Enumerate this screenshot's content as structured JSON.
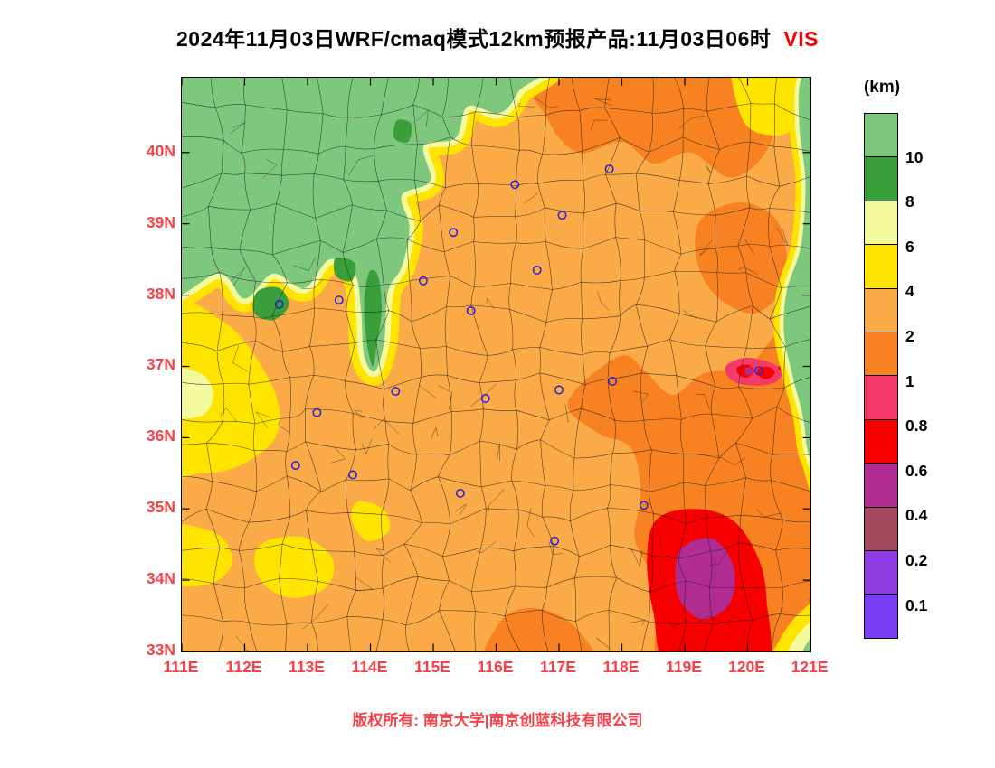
{
  "title": {
    "main": "2024年11月03日WRF/cmaq模式12km预报产品:11月03日06时",
    "var": "VIS",
    "var_color": "#f80000"
  },
  "footer": {
    "text": "版权所有: 南京大学|南京创蓝科技有限公司",
    "color": "#fa3f46"
  },
  "legend": {
    "unit": "(km)",
    "labels": [
      "10",
      "8",
      "6",
      "4",
      "2",
      "1",
      "0.8",
      "0.6",
      "0.4",
      "0.2",
      "0.1"
    ],
    "colors": [
      "#7dc87d",
      "#3a9e3a",
      "#f3fa9e",
      "#ffe400",
      "#fbaa48",
      "#f88221",
      "#f43a69",
      "#f80000",
      "#b02c91",
      "#a44a5f",
      "#8d3de0",
      "#7a3cf0"
    ]
  },
  "axes": {
    "lat_labels": [
      "40N",
      "39N",
      "38N",
      "37N",
      "36N",
      "35N",
      "34N",
      "33N"
    ],
    "lon_labels": [
      "111E",
      "112E",
      "113E",
      "114E",
      "115E",
      "116E",
      "117E",
      "118E",
      "119E",
      "120E",
      "121E"
    ],
    "label_color": "#fa3f46"
  },
  "chart_data": {
    "type": "heatmap",
    "variable": "VIS",
    "unit": "km",
    "lon_range": [
      111,
      121
    ],
    "lat_range": [
      33,
      41.05
    ],
    "levels": [
      0.1,
      0.2,
      0.4,
      0.6,
      0.8,
      1,
      2,
      4,
      6,
      8,
      10
    ],
    "marker_color": "#2323d7",
    "boundary_color": "#1b1b1b",
    "city_markers": [
      [
        116.3,
        39.55
      ],
      [
        117.05,
        39.12
      ],
      [
        117.8,
        39.77
      ],
      [
        115.32,
        38.88
      ],
      [
        114.84,
        38.2
      ],
      [
        116.65,
        38.35
      ],
      [
        115.6,
        37.78
      ],
      [
        112.55,
        37.87
      ],
      [
        113.5,
        37.93
      ],
      [
        114.4,
        36.65
      ],
      [
        113.15,
        36.35
      ],
      [
        112.81,
        35.61
      ],
      [
        113.72,
        35.48
      ],
      [
        115.43,
        35.22
      ],
      [
        115.83,
        36.55
      ],
      [
        117.0,
        36.67
      ],
      [
        117.85,
        36.79
      ],
      [
        120.18,
        36.94
      ],
      [
        116.93,
        34.55
      ],
      [
        118.35,
        35.05
      ]
    ],
    "shapes": {
      "nw_green": [
        [
          110.6,
          41.4
        ],
        [
          110.6,
          38.15
        ],
        [
          111.6,
          38.3
        ],
        [
          112.0,
          37.95
        ],
        [
          112.45,
          38.3
        ],
        [
          112.95,
          38.1
        ],
        [
          113.35,
          38.5
        ],
        [
          113.75,
          38.3
        ],
        [
          113.85,
          37.8
        ],
        [
          113.9,
          37.15
        ],
        [
          114.07,
          36.93
        ],
        [
          114.22,
          37.35
        ],
        [
          114.28,
          38.05
        ],
        [
          114.5,
          38.4
        ],
        [
          114.62,
          38.95
        ],
        [
          114.5,
          39.4
        ],
        [
          114.95,
          39.6
        ],
        [
          114.85,
          40.1
        ],
        [
          115.35,
          40.2
        ],
        [
          115.55,
          40.65
        ],
        [
          116.05,
          40.55
        ],
        [
          116.35,
          40.85
        ],
        [
          116.55,
          41.4
        ]
      ],
      "sea_strip": [
        [
          121.4,
          41.4
        ],
        [
          120.88,
          41.1
        ],
        [
          120.82,
          40.4
        ],
        [
          120.92,
          39.6
        ],
        [
          120.85,
          38.7
        ],
        [
          120.62,
          38.05
        ],
        [
          120.58,
          37.45
        ],
        [
          120.72,
          36.85
        ],
        [
          120.88,
          36.3
        ],
        [
          121.0,
          35.7
        ],
        [
          121.4,
          35.35
        ]
      ],
      "se_corner_y": [
        [
          120.3,
          32.6
        ],
        [
          120.5,
          33.15
        ],
        [
          120.9,
          33.6
        ],
        [
          121.4,
          33.8
        ],
        [
          121.4,
          32.6
        ]
      ],
      "se_corner_p": [
        [
          120.55,
          32.6
        ],
        [
          120.7,
          33.1
        ],
        [
          121.05,
          33.45
        ],
        [
          121.4,
          33.55
        ],
        [
          121.4,
          32.6
        ]
      ],
      "se_corner_g": [
        [
          120.75,
          32.6
        ],
        [
          120.9,
          33.05
        ],
        [
          121.15,
          33.3
        ],
        [
          121.4,
          33.35
        ],
        [
          121.4,
          32.6
        ]
      ]
    },
    "regions": [
      {
        "name": "top-band",
        "level": "1-2",
        "fill": 5,
        "pts": [
          [
            116.55,
            41.4
          ],
          [
            116.8,
            40.5
          ],
          [
            117.3,
            40.0
          ],
          [
            118.0,
            40.15
          ],
          [
            118.5,
            39.85
          ],
          [
            119.1,
            40.0
          ],
          [
            119.7,
            39.65
          ],
          [
            120.2,
            39.9
          ],
          [
            120.5,
            40.5
          ],
          [
            120.55,
            41.4
          ]
        ]
      },
      {
        "name": "bohai-coast",
        "level": "1-2",
        "fill": 5,
        "pts": [
          [
            119.25,
            39.05
          ],
          [
            119.9,
            39.3
          ],
          [
            120.5,
            39.0
          ],
          [
            120.6,
            38.2
          ],
          [
            120.15,
            37.75
          ],
          [
            119.55,
            37.95
          ],
          [
            119.2,
            38.45
          ]
        ]
      },
      {
        "name": "east-region",
        "level": "1-2",
        "fill": 5,
        "pts": [
          [
            118.0,
            37.15
          ],
          [
            117.35,
            36.75
          ],
          [
            117.15,
            36.4
          ],
          [
            117.65,
            36.05
          ],
          [
            118.15,
            35.85
          ],
          [
            118.3,
            35.2
          ],
          [
            118.2,
            34.6
          ],
          [
            118.45,
            34.1
          ],
          [
            118.55,
            33.5
          ],
          [
            118.8,
            32.7
          ],
          [
            121.4,
            32.7
          ],
          [
            121.4,
            37.1
          ],
          [
            120.6,
            37.5
          ],
          [
            120.0,
            37.0
          ],
          [
            119.3,
            36.9
          ],
          [
            118.8,
            36.6
          ],
          [
            118.35,
            36.95
          ]
        ]
      },
      {
        "name": "bottom-center",
        "level": "1-2",
        "fill": 5,
        "pts": [
          [
            115.85,
            32.7
          ],
          [
            116.1,
            33.45
          ],
          [
            116.7,
            33.6
          ],
          [
            117.3,
            33.3
          ],
          [
            117.55,
            32.7
          ]
        ]
      },
      {
        "name": "se-red",
        "level": "0.6-0.8",
        "fill": 7,
        "pts": [
          [
            118.55,
            34.85
          ],
          [
            119.15,
            35.0
          ],
          [
            119.75,
            34.85
          ],
          [
            120.15,
            34.35
          ],
          [
            120.3,
            33.75
          ],
          [
            120.25,
            32.7
          ],
          [
            118.8,
            32.7
          ],
          [
            118.5,
            33.55
          ],
          [
            118.4,
            34.3
          ]
        ]
      },
      {
        "name": "se-magenta",
        "level": "0.4-0.6",
        "fill": 8,
        "pts": [
          [
            118.95,
            34.45
          ],
          [
            119.45,
            34.58
          ],
          [
            119.78,
            34.18
          ],
          [
            119.72,
            33.68
          ],
          [
            119.3,
            33.45
          ],
          [
            118.95,
            33.68
          ],
          [
            118.85,
            34.05
          ]
        ]
      },
      {
        "name": "jiaodong-pink",
        "level": "0.8-1",
        "fill": 6,
        "pts": [
          [
            119.65,
            37.0
          ],
          [
            119.95,
            37.12
          ],
          [
            120.3,
            37.07
          ],
          [
            120.55,
            36.95
          ],
          [
            120.45,
            36.78
          ],
          [
            120.1,
            36.73
          ],
          [
            119.75,
            36.8
          ]
        ]
      },
      {
        "name": "jiaodong-red-1",
        "level": "0.6-0.8",
        "fill": 7,
        "pts": [
          [
            119.85,
            37.0
          ],
          [
            120.02,
            37.02
          ],
          [
            120.1,
            36.92
          ],
          [
            119.98,
            36.84
          ],
          [
            119.84,
            36.9
          ]
        ]
      },
      {
        "name": "jiaodong-red-2",
        "level": "0.6-0.8",
        "fill": 7,
        "pts": [
          [
            120.18,
            36.97
          ],
          [
            120.35,
            36.99
          ],
          [
            120.43,
            36.9
          ],
          [
            120.3,
            36.82
          ],
          [
            120.16,
            36.88
          ]
        ]
      },
      {
        "name": "jiaodong-dark",
        "level": "0.4-0.6",
        "fill": 8,
        "pts": [
          [
            119.96,
            36.97
          ],
          [
            120.05,
            36.98
          ],
          [
            120.08,
            36.9
          ],
          [
            119.98,
            36.88
          ]
        ]
      },
      {
        "name": "coast-streak",
        "level": "0.6-0.8",
        "fill": 7,
        "pts": [
          [
            120.5,
            37.0
          ],
          [
            120.78,
            37.05
          ],
          [
            120.98,
            37.0
          ],
          [
            120.78,
            36.93
          ],
          [
            120.55,
            36.93
          ]
        ]
      },
      {
        "name": "west-yellow",
        "level": "4-6",
        "fill": 3,
        "pts": [
          [
            110.6,
            37.9
          ],
          [
            111.7,
            37.6
          ],
          [
            112.3,
            36.95
          ],
          [
            112.55,
            36.4
          ],
          [
            112.45,
            35.95
          ],
          [
            111.9,
            35.6
          ],
          [
            111.3,
            35.5
          ],
          [
            110.6,
            35.6
          ]
        ]
      },
      {
        "name": "west-pale",
        "level": "6-8",
        "fill": 2,
        "pts": [
          [
            110.7,
            36.95
          ],
          [
            111.3,
            36.9
          ],
          [
            111.5,
            36.6
          ],
          [
            111.3,
            36.3
          ],
          [
            110.7,
            36.35
          ]
        ]
      },
      {
        "name": "sw-yellow-1",
        "level": "4-6",
        "fill": 3,
        "pts": [
          [
            110.7,
            34.75
          ],
          [
            111.55,
            34.65
          ],
          [
            111.8,
            34.25
          ],
          [
            111.45,
            33.95
          ],
          [
            110.75,
            34.0
          ]
        ]
      },
      {
        "name": "sw-yellow-2",
        "level": "4-6",
        "fill": 3,
        "pts": [
          [
            112.35,
            34.55
          ],
          [
            112.95,
            34.6
          ],
          [
            113.4,
            34.3
          ],
          [
            113.3,
            33.9
          ],
          [
            112.75,
            33.75
          ],
          [
            112.3,
            33.95
          ],
          [
            112.15,
            34.3
          ]
        ]
      },
      {
        "name": "sw-yellow-3",
        "level": "4-6",
        "fill": 3,
        "pts": [
          [
            113.8,
            35.1
          ],
          [
            114.2,
            35.0
          ],
          [
            114.3,
            34.7
          ],
          [
            113.95,
            34.55
          ],
          [
            113.7,
            34.85
          ]
        ]
      },
      {
        "name": "ne-corner-yellow",
        "level": "4-6",
        "fill": 3,
        "pts": [
          [
            119.8,
            41.4
          ],
          [
            119.9,
            40.5
          ],
          [
            120.3,
            40.25
          ],
          [
            120.75,
            40.4
          ],
          [
            120.9,
            41.4
          ]
        ]
      },
      {
        "name": "nw-band-yellow",
        "level": "4-6",
        "fill": 3,
        "stroke": 3,
        "sw": 30,
        "shape": "nw_green"
      },
      {
        "name": "nw-band-pale",
        "level": "6-8",
        "fill": 2,
        "stroke": 2,
        "sw": 12,
        "shape": "nw_green"
      },
      {
        "name": "nw-green",
        "level": ">10",
        "fill": 0,
        "shape": "nw_green"
      },
      {
        "name": "nw-darkgreen-finger",
        "level": "8-10",
        "fill": 1,
        "pts": [
          [
            113.98,
            38.32
          ],
          [
            114.12,
            38.27
          ],
          [
            114.18,
            37.8
          ],
          [
            114.1,
            37.3
          ],
          [
            114.04,
            37.0
          ],
          [
            113.94,
            37.35
          ],
          [
            113.9,
            37.9
          ]
        ]
      },
      {
        "name": "nw-darkgreen-1",
        "level": "8-10",
        "fill": 1,
        "pts": [
          [
            112.2,
            38.05
          ],
          [
            112.55,
            38.1
          ],
          [
            112.7,
            37.85
          ],
          [
            112.45,
            37.65
          ],
          [
            112.15,
            37.75
          ]
        ]
      },
      {
        "name": "nw-darkgreen-2",
        "level": "8-10",
        "fill": 1,
        "pts": [
          [
            113.45,
            38.52
          ],
          [
            113.75,
            38.45
          ],
          [
            113.7,
            38.2
          ],
          [
            113.45,
            38.27
          ]
        ]
      },
      {
        "name": "nw-darkgreen-3",
        "level": "8-10",
        "fill": 1,
        "pts": [
          [
            114.42,
            40.45
          ],
          [
            114.65,
            40.4
          ],
          [
            114.6,
            40.15
          ],
          [
            114.38,
            40.2
          ]
        ]
      },
      {
        "name": "sea-band-yellow",
        "level": "4-6",
        "fill": 3,
        "stroke": 3,
        "sw": 22,
        "shape": "sea_strip"
      },
      {
        "name": "sea-band-pale",
        "level": "6-8",
        "fill": 2,
        "stroke": 2,
        "sw": 9,
        "shape": "sea_strip"
      },
      {
        "name": "sea-green",
        "level": ">10",
        "fill": 0,
        "shape": "sea_strip"
      },
      {
        "name": "se-corner-yellow",
        "level": "4-6",
        "fill": 3,
        "shape": "se_corner_y"
      },
      {
        "name": "se-corner-pale",
        "level": "6-8",
        "fill": 2,
        "shape": "se_corner_p"
      },
      {
        "name": "se-corner-green",
        "level": ">10",
        "fill": 0,
        "shape": "se_corner_g"
      }
    ]
  }
}
